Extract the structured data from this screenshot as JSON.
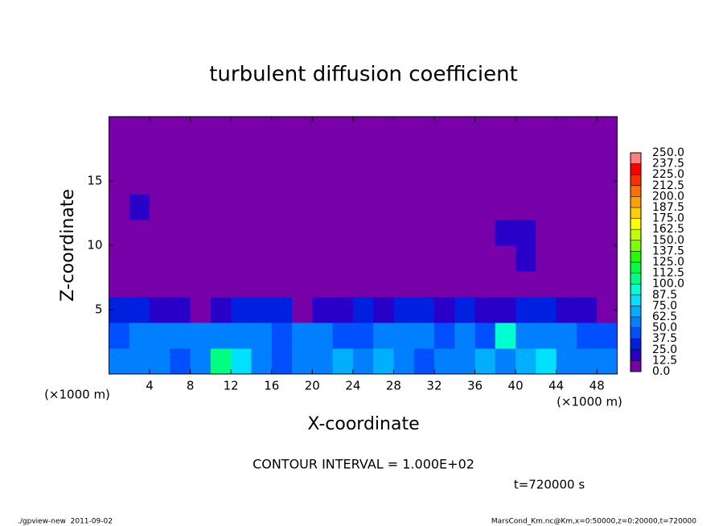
{
  "chart_data": {
    "type": "heatmap",
    "title": "turbulent diffusion coefficient",
    "x_label": "X-coordinate",
    "y_label": "Z-coordinate",
    "x_unit_label": "(×1000 m)",
    "y_unit_label": "(×1000 m)",
    "xlim": [
      0,
      50
    ],
    "ylim": [
      0,
      20
    ],
    "xticks": [
      4,
      8,
      12,
      16,
      20,
      24,
      28,
      32,
      36,
      40,
      44,
      48
    ],
    "yticks": [
      5,
      10,
      15
    ],
    "x": [
      1,
      3,
      5,
      7,
      9,
      11,
      13,
      15,
      17,
      19,
      21,
      23,
      25,
      27,
      29,
      31,
      33,
      35,
      37,
      39,
      41,
      43,
      45,
      47,
      49
    ],
    "y": [
      1,
      3,
      5,
      7,
      9,
      11,
      13,
      15,
      17,
      19
    ],
    "values": [
      [
        55,
        60,
        50,
        45,
        60,
        105,
        75,
        50,
        45,
        55,
        60,
        65,
        55,
        70,
        60,
        45,
        50,
        55,
        65,
        60,
        70,
        75,
        60,
        55,
        50
      ],
      [
        45,
        55,
        60,
        50,
        55,
        50,
        60,
        55,
        45,
        50,
        55,
        45,
        40,
        50,
        55,
        60,
        45,
        50,
        40,
        90,
        50,
        60,
        55,
        45,
        40
      ],
      [
        25,
        35,
        20,
        15,
        10,
        20,
        30,
        25,
        35,
        10,
        15,
        20,
        25,
        20,
        30,
        25,
        20,
        25,
        15,
        20,
        25,
        30,
        20,
        15,
        10
      ],
      [
        0,
        0,
        5,
        0,
        0,
        0,
        0,
        0,
        0,
        0,
        0,
        0,
        0,
        0,
        0,
        0,
        0,
        0,
        0,
        5,
        10,
        5,
        0,
        0,
        0
      ],
      [
        0,
        0,
        0,
        0,
        0,
        0,
        0,
        0,
        0,
        0,
        0,
        0,
        0,
        0,
        0,
        0,
        0,
        0,
        0,
        10,
        15,
        10,
        0,
        10,
        0
      ],
      [
        0,
        0,
        0,
        0,
        0,
        0,
        0,
        0,
        0,
        0,
        0,
        0,
        0,
        0,
        0,
        0,
        0,
        0,
        0,
        15,
        20,
        10,
        0,
        0,
        0
      ],
      [
        0,
        15,
        0,
        0,
        0,
        0,
        10,
        0,
        0,
        0,
        0,
        0,
        0,
        0,
        0,
        0,
        0,
        0,
        0,
        0,
        0,
        0,
        0,
        0,
        0
      ],
      [
        0,
        0,
        0,
        0,
        0,
        0,
        0,
        0,
        0,
        0,
        0,
        0,
        0,
        0,
        0,
        0,
        0,
        0,
        0,
        0,
        0,
        0,
        0,
        0,
        0
      ],
      [
        0,
        0,
        0,
        0,
        0,
        0,
        0,
        0,
        0,
        0,
        0,
        0,
        0,
        0,
        0,
        0,
        0,
        0,
        0,
        0,
        0,
        0,
        0,
        0,
        0
      ],
      [
        0,
        0,
        0,
        0,
        0,
        0,
        0,
        0,
        0,
        0,
        0,
        0,
        0,
        0,
        0,
        0,
        0,
        0,
        0,
        0,
        0,
        0,
        0,
        0,
        0
      ]
    ],
    "levels": [
      {
        "value": 0,
        "label": "0.0"
      },
      {
        "value": 12.5,
        "label": "12.5"
      },
      {
        "value": 25,
        "label": "25.0"
      },
      {
        "value": 37.5,
        "label": "37.5"
      },
      {
        "value": 50,
        "label": "50.0"
      },
      {
        "value": 62.5,
        "label": "62.5"
      },
      {
        "value": 75,
        "label": "75.0"
      },
      {
        "value": 87.5,
        "label": "87.5"
      },
      {
        "value": 100,
        "label": "100.0"
      },
      {
        "value": 112.5,
        "label": "112.5"
      },
      {
        "value": 125,
        "label": "125.0"
      },
      {
        "value": 137.5,
        "label": "137.5"
      },
      {
        "value": 150,
        "label": "150.0"
      },
      {
        "value": 162.5,
        "label": "162.5"
      },
      {
        "value": 175,
        "label": "175.0"
      },
      {
        "value": 187.5,
        "label": "187.5"
      },
      {
        "value": 200,
        "label": "200.0"
      },
      {
        "value": 212.5,
        "label": "212.5"
      },
      {
        "value": 225,
        "label": "225.0"
      },
      {
        "value": 237.5,
        "label": "237.5"
      },
      {
        "value": 250,
        "label": "250.0"
      }
    ],
    "colors": [
      "#7800a8",
      "#2800c8",
      "#0020e0",
      "#0050ff",
      "#0080ff",
      "#00b0ff",
      "#00e0ff",
      "#00ffd0",
      "#00ff80",
      "#00ff40",
      "#20ff00",
      "#80ff00",
      "#c0ff00",
      "#ffff00",
      "#ffd000",
      "#ffa000",
      "#ff7000",
      "#ff3000",
      "#ff0000",
      "#ff8080"
    ],
    "contour_interval_label": "CONTOUR INTERVAL = 1.000E+02",
    "time_label": "t=720000 s",
    "footer_left": "./gpview-new  2011-09-02",
    "footer_right": "MarsCond_Km.nc@Km,x=0:50000,z=0:20000,t=720000"
  }
}
